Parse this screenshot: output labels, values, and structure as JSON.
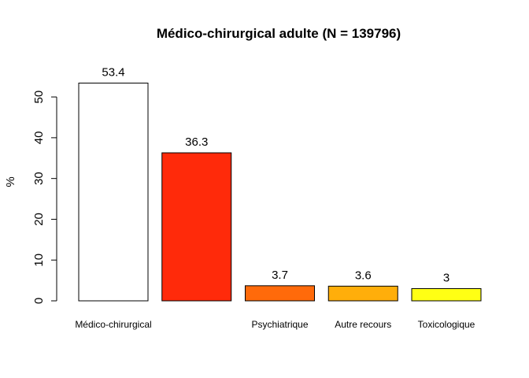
{
  "chart_data": {
    "type": "bar",
    "title": "Médico-chirurgical adulte (N = 139796)",
    "xlabel": "",
    "ylabel": "%",
    "ylim": [
      0,
      53.4
    ],
    "yticks": [
      0,
      10,
      20,
      30,
      40,
      50
    ],
    "grid": false,
    "categories": [
      "Médico-chirurgical",
      "",
      "Psychiatrique",
      "Autre recours",
      "Toxicologique"
    ],
    "values": [
      53.4,
      36.3,
      3.7,
      3.6,
      3
    ],
    "value_labels": [
      "53.4",
      "36.3",
      "3.7",
      "3.6",
      "3"
    ],
    "colors": [
      "#ffffff",
      "#ff2a0a",
      "#ff6a0a",
      "#ffae0a",
      "#ffff14"
    ]
  }
}
